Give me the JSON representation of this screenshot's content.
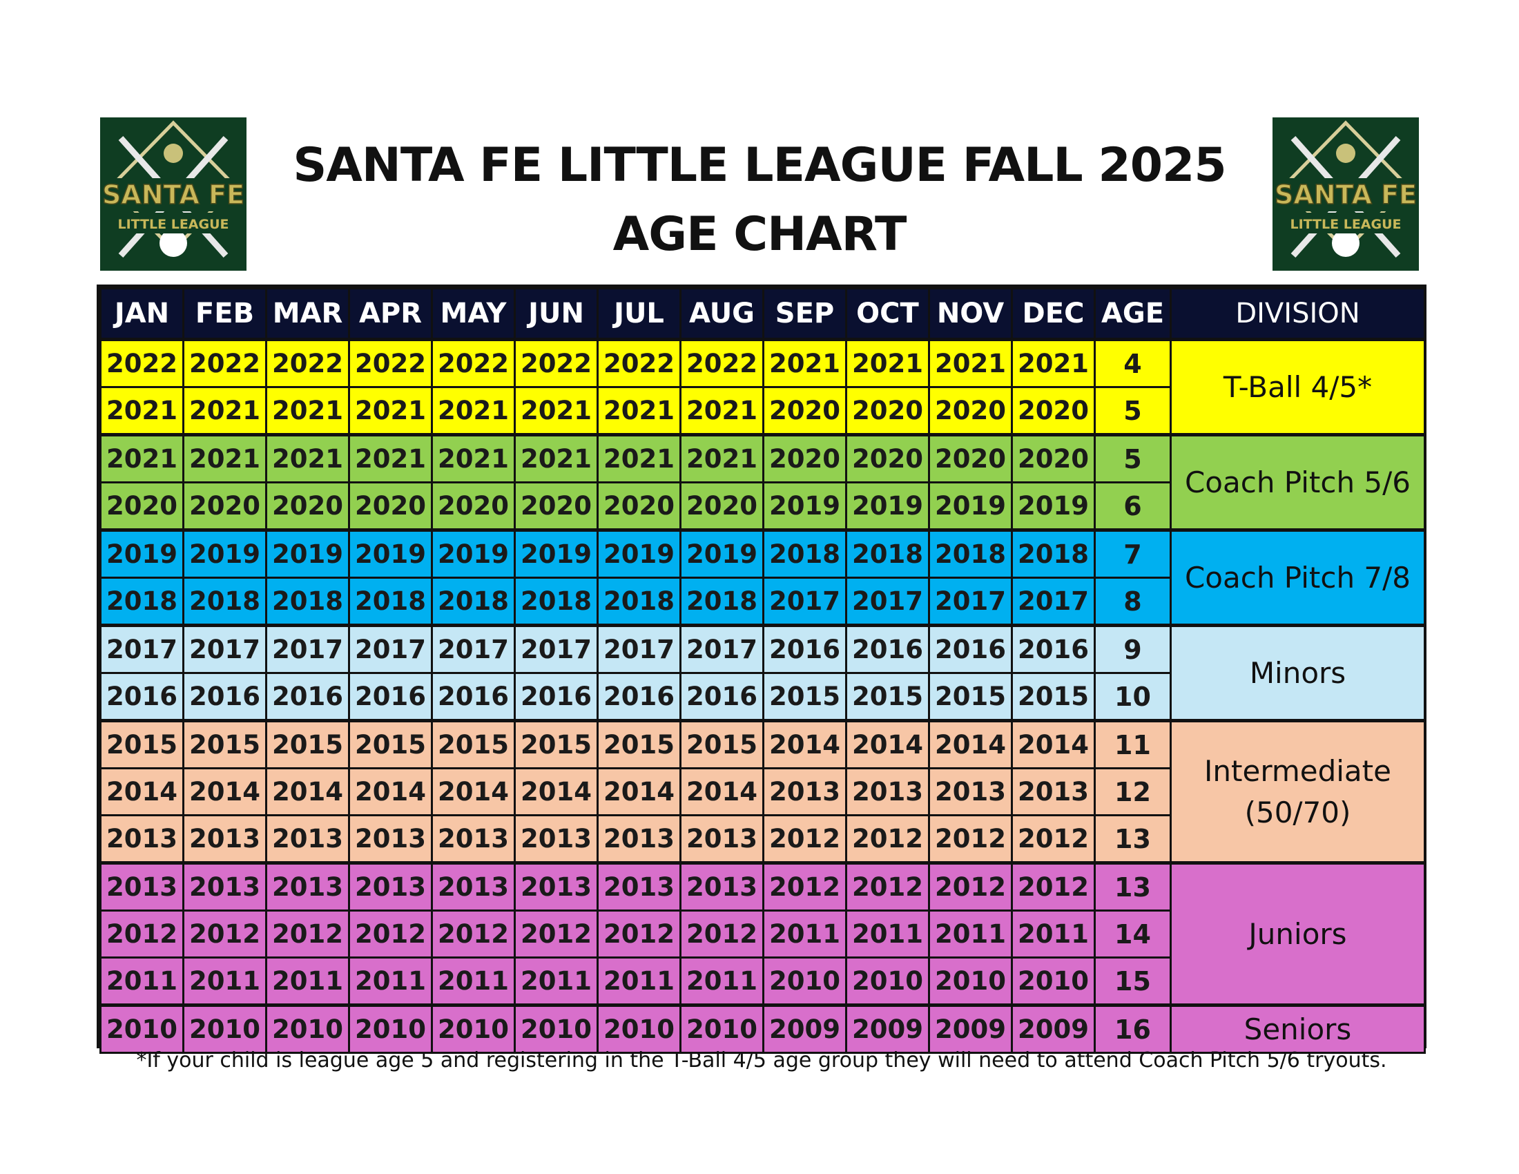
{
  "title_line1": "SANTA FE LITTLE LEAGUE FALL 2025",
  "title_line2": "AGE CHART",
  "logo": {
    "name": "SANTA FE",
    "sub": "LITTLE LEAGUE"
  },
  "headers": [
    "JAN",
    "FEB",
    "MAR",
    "APR",
    "MAY",
    "JUN",
    "JUL",
    "AUG",
    "SEP",
    "OCT",
    "NOV",
    "DEC",
    "AGE",
    "DIVISION"
  ],
  "groups": [
    {
      "division": "T-Ball 4/5*",
      "color": "#ffff00",
      "rows": [
        {
          "years": [
            "2022",
            "2022",
            "2022",
            "2022",
            "2022",
            "2022",
            "2022",
            "2022",
            "2021",
            "2021",
            "2021",
            "2021"
          ],
          "age": "4"
        },
        {
          "years": [
            "2021",
            "2021",
            "2021",
            "2021",
            "2021",
            "2021",
            "2021",
            "2021",
            "2020",
            "2020",
            "2020",
            "2020"
          ],
          "age": "5"
        }
      ]
    },
    {
      "division": "Coach Pitch 5/6",
      "color": "#92d050",
      "rows": [
        {
          "years": [
            "2021",
            "2021",
            "2021",
            "2021",
            "2021",
            "2021",
            "2021",
            "2021",
            "2020",
            "2020",
            "2020",
            "2020"
          ],
          "age": "5"
        },
        {
          "years": [
            "2020",
            "2020",
            "2020",
            "2020",
            "2020",
            "2020",
            "2020",
            "2020",
            "2019",
            "2019",
            "2019",
            "2019"
          ],
          "age": "6"
        }
      ]
    },
    {
      "division": "Coach Pitch 7/8",
      "color": "#00b0f0",
      "rows": [
        {
          "years": [
            "2019",
            "2019",
            "2019",
            "2019",
            "2019",
            "2019",
            "2019",
            "2019",
            "2018",
            "2018",
            "2018",
            "2018"
          ],
          "age": "7"
        },
        {
          "years": [
            "2018",
            "2018",
            "2018",
            "2018",
            "2018",
            "2018",
            "2018",
            "2018",
            "2017",
            "2017",
            "2017",
            "2017"
          ],
          "age": "8"
        }
      ]
    },
    {
      "division": "Minors",
      "color": "#c5e7f5",
      "rows": [
        {
          "years": [
            "2017",
            "2017",
            "2017",
            "2017",
            "2017",
            "2017",
            "2017",
            "2017",
            "2016",
            "2016",
            "2016",
            "2016"
          ],
          "age": "9"
        },
        {
          "years": [
            "2016",
            "2016",
            "2016",
            "2016",
            "2016",
            "2016",
            "2016",
            "2016",
            "2015",
            "2015",
            "2015",
            "2015"
          ],
          "age": "10"
        }
      ]
    },
    {
      "division": "Intermediate (50/70)",
      "color": "#f7c6a6",
      "rows": [
        {
          "years": [
            "2015",
            "2015",
            "2015",
            "2015",
            "2015",
            "2015",
            "2015",
            "2015",
            "2014",
            "2014",
            "2014",
            "2014"
          ],
          "age": "11"
        },
        {
          "years": [
            "2014",
            "2014",
            "2014",
            "2014",
            "2014",
            "2014",
            "2014",
            "2014",
            "2013",
            "2013",
            "2013",
            "2013"
          ],
          "age": "12"
        },
        {
          "years": [
            "2013",
            "2013",
            "2013",
            "2013",
            "2013",
            "2013",
            "2013",
            "2013",
            "2012",
            "2012",
            "2012",
            "2012"
          ],
          "age": "13"
        }
      ]
    },
    {
      "division": "Juniors",
      "color": "#d86fcb",
      "rows": [
        {
          "years": [
            "2013",
            "2013",
            "2013",
            "2013",
            "2013",
            "2013",
            "2013",
            "2013",
            "2012",
            "2012",
            "2012",
            "2012"
          ],
          "age": "13"
        },
        {
          "years": [
            "2012",
            "2012",
            "2012",
            "2012",
            "2012",
            "2012",
            "2012",
            "2012",
            "2011",
            "2011",
            "2011",
            "2011"
          ],
          "age": "14"
        },
        {
          "years": [
            "2011",
            "2011",
            "2011",
            "2011",
            "2011",
            "2011",
            "2011",
            "2011",
            "2010",
            "2010",
            "2010",
            "2010"
          ],
          "age": "15"
        }
      ]
    },
    {
      "division": "Seniors",
      "color": "#d86fcb",
      "rows": [
        {
          "years": [
            "2010",
            "2010",
            "2010",
            "2010",
            "2010",
            "2010",
            "2010",
            "2010",
            "2009",
            "2009",
            "2009",
            "2009"
          ],
          "age": "16"
        }
      ]
    }
  ],
  "footnote": "*If your child is league age 5 and registering in the T-Ball 4/5 age group they will need to attend Coach Pitch 5/6 tryouts."
}
